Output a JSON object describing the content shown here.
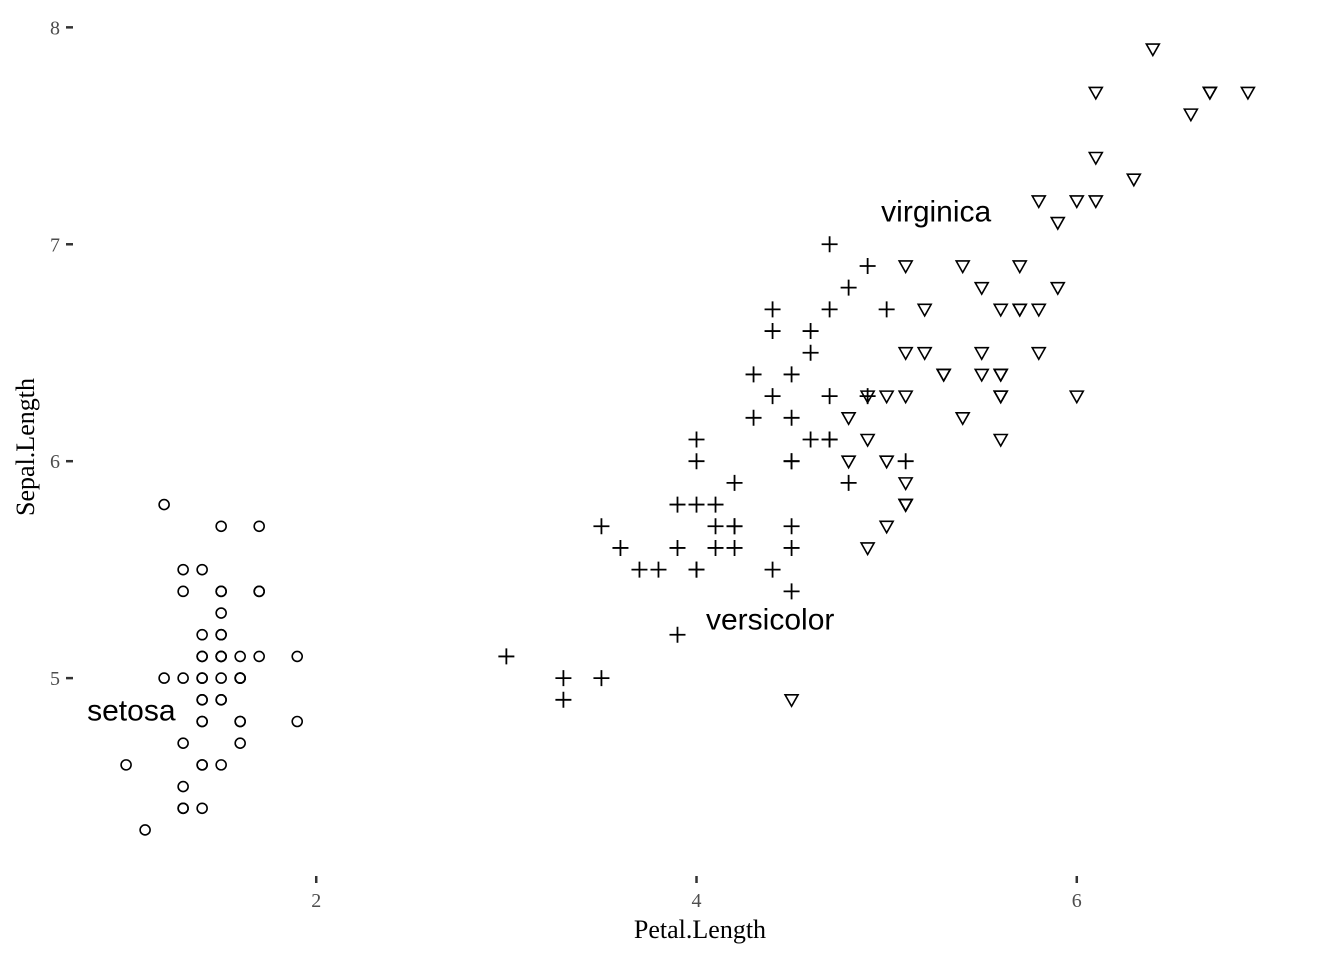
{
  "chart_data": {
    "type": "scatter",
    "xlabel": "Petal.Length",
    "ylabel": "Sepal.Length",
    "xlim": [
      0.705,
      7.195
    ],
    "ylim": [
      4.12,
      8.08
    ],
    "x_ticks": [
      {
        "value": 2,
        "label": "2"
      },
      {
        "value": 4,
        "label": "4"
      },
      {
        "value": 6,
        "label": "6"
      }
    ],
    "y_ticks": [
      {
        "value": 5,
        "label": "5"
      },
      {
        "value": 6,
        "label": "6"
      },
      {
        "value": 7,
        "label": "7"
      },
      {
        "value": 8,
        "label": "8"
      }
    ],
    "grid": false,
    "legend": "none",
    "annotations": [
      {
        "text": "setosa",
        "x": 1.26,
        "y": 4.85,
        "anchor": "end"
      },
      {
        "text": "versicolor",
        "x": 4.05,
        "y": 5.27,
        "anchor": "start"
      },
      {
        "text": "virginica",
        "x": 5.55,
        "y": 7.15,
        "anchor": "end"
      }
    ],
    "series": [
      {
        "shape": "circle",
        "points": [
          [
            1.4,
            5.1
          ],
          [
            1.4,
            4.9
          ],
          [
            1.3,
            4.7
          ],
          [
            1.5,
            4.6
          ],
          [
            1.4,
            5.0
          ],
          [
            1.7,
            5.4
          ],
          [
            1.4,
            4.6
          ],
          [
            1.5,
            5.0
          ],
          [
            1.4,
            4.4
          ],
          [
            1.5,
            4.9
          ],
          [
            1.5,
            5.4
          ],
          [
            1.6,
            4.8
          ],
          [
            1.4,
            4.8
          ],
          [
            1.1,
            4.3
          ],
          [
            1.2,
            5.8
          ],
          [
            1.5,
            5.7
          ],
          [
            1.3,
            5.4
          ],
          [
            1.4,
            5.1
          ],
          [
            1.7,
            5.7
          ],
          [
            1.5,
            5.1
          ],
          [
            1.7,
            5.4
          ],
          [
            1.5,
            5.1
          ],
          [
            1.0,
            4.6
          ],
          [
            1.7,
            5.1
          ],
          [
            1.9,
            4.8
          ],
          [
            1.6,
            5.0
          ],
          [
            1.6,
            5.0
          ],
          [
            1.5,
            5.2
          ],
          [
            1.4,
            5.2
          ],
          [
            1.6,
            4.7
          ],
          [
            1.6,
            4.8
          ],
          [
            1.5,
            5.4
          ],
          [
            1.5,
            5.2
          ],
          [
            1.4,
            5.5
          ],
          [
            1.5,
            4.9
          ],
          [
            1.2,
            5.0
          ],
          [
            1.3,
            5.5
          ],
          [
            1.4,
            4.9
          ],
          [
            1.3,
            4.4
          ],
          [
            1.5,
            5.1
          ],
          [
            1.3,
            5.0
          ],
          [
            1.3,
            4.5
          ],
          [
            1.3,
            4.4
          ],
          [
            1.6,
            5.0
          ],
          [
            1.9,
            5.1
          ],
          [
            1.4,
            4.8
          ],
          [
            1.6,
            5.1
          ],
          [
            1.4,
            4.6
          ],
          [
            1.5,
            5.3
          ],
          [
            1.4,
            5.0
          ]
        ]
      },
      {
        "shape": "plus",
        "points": [
          [
            4.7,
            7.0
          ],
          [
            4.5,
            6.4
          ],
          [
            4.9,
            6.9
          ],
          [
            4.0,
            5.5
          ],
          [
            4.6,
            6.5
          ],
          [
            4.5,
            5.7
          ],
          [
            4.7,
            6.3
          ],
          [
            3.3,
            4.9
          ],
          [
            4.6,
            6.6
          ],
          [
            3.9,
            5.2
          ],
          [
            3.5,
            5.0
          ],
          [
            4.2,
            5.9
          ],
          [
            4.0,
            6.0
          ],
          [
            4.7,
            6.1
          ],
          [
            3.6,
            5.6
          ],
          [
            4.4,
            6.7
          ],
          [
            4.5,
            5.6
          ],
          [
            4.1,
            5.8
          ],
          [
            4.5,
            6.2
          ],
          [
            3.9,
            5.6
          ],
          [
            4.8,
            5.9
          ],
          [
            4.0,
            6.1
          ],
          [
            4.9,
            6.3
          ],
          [
            4.7,
            6.1
          ],
          [
            4.3,
            6.4
          ],
          [
            4.4,
            6.6
          ],
          [
            4.8,
            6.8
          ],
          [
            5.0,
            6.7
          ],
          [
            4.5,
            6.0
          ],
          [
            3.5,
            5.7
          ],
          [
            3.8,
            5.5
          ],
          [
            3.7,
            5.5
          ],
          [
            3.9,
            5.8
          ],
          [
            5.1,
            6.0
          ],
          [
            4.5,
            5.4
          ],
          [
            4.5,
            6.0
          ],
          [
            4.7,
            6.7
          ],
          [
            4.4,
            6.3
          ],
          [
            4.1,
            5.6
          ],
          [
            4.0,
            5.5
          ],
          [
            4.4,
            5.5
          ],
          [
            4.6,
            6.1
          ],
          [
            4.0,
            5.8
          ],
          [
            3.3,
            5.0
          ],
          [
            4.2,
            5.6
          ],
          [
            4.2,
            5.7
          ],
          [
            4.2,
            5.7
          ],
          [
            4.3,
            6.2
          ],
          [
            3.0,
            5.1
          ],
          [
            4.1,
            5.7
          ]
        ]
      },
      {
        "shape": "triangle-down",
        "points": [
          [
            6.0,
            6.3
          ],
          [
            5.1,
            5.8
          ],
          [
            5.9,
            7.1
          ],
          [
            5.6,
            6.3
          ],
          [
            5.8,
            6.5
          ],
          [
            6.6,
            7.6
          ],
          [
            4.5,
            4.9
          ],
          [
            6.3,
            7.3
          ],
          [
            5.8,
            6.7
          ],
          [
            6.1,
            7.2
          ],
          [
            5.1,
            6.5
          ],
          [
            5.3,
            6.4
          ],
          [
            5.5,
            6.8
          ],
          [
            5.0,
            5.7
          ],
          [
            5.1,
            5.8
          ],
          [
            5.3,
            6.4
          ],
          [
            5.5,
            6.5
          ],
          [
            6.7,
            7.7
          ],
          [
            6.9,
            7.7
          ],
          [
            5.0,
            6.0
          ],
          [
            5.7,
            6.9
          ],
          [
            4.9,
            5.6
          ],
          [
            6.7,
            7.7
          ],
          [
            4.9,
            6.3
          ],
          [
            5.7,
            6.7
          ],
          [
            6.0,
            7.2
          ],
          [
            4.8,
            6.2
          ],
          [
            4.9,
            6.1
          ],
          [
            5.6,
            6.4
          ],
          [
            5.8,
            7.2
          ],
          [
            6.1,
            7.4
          ],
          [
            6.4,
            7.9
          ],
          [
            5.6,
            6.4
          ],
          [
            5.1,
            6.3
          ],
          [
            5.6,
            6.1
          ],
          [
            6.1,
            7.7
          ],
          [
            5.6,
            6.3
          ],
          [
            5.5,
            6.4
          ],
          [
            4.8,
            6.0
          ],
          [
            5.4,
            6.9
          ],
          [
            5.6,
            6.7
          ],
          [
            5.1,
            6.9
          ],
          [
            5.1,
            5.8
          ],
          [
            5.9,
            6.8
          ],
          [
            5.7,
            6.7
          ],
          [
            5.2,
            6.7
          ],
          [
            5.0,
            6.3
          ],
          [
            5.2,
            6.5
          ],
          [
            5.4,
            6.2
          ],
          [
            5.1,
            5.9
          ]
        ]
      }
    ]
  }
}
